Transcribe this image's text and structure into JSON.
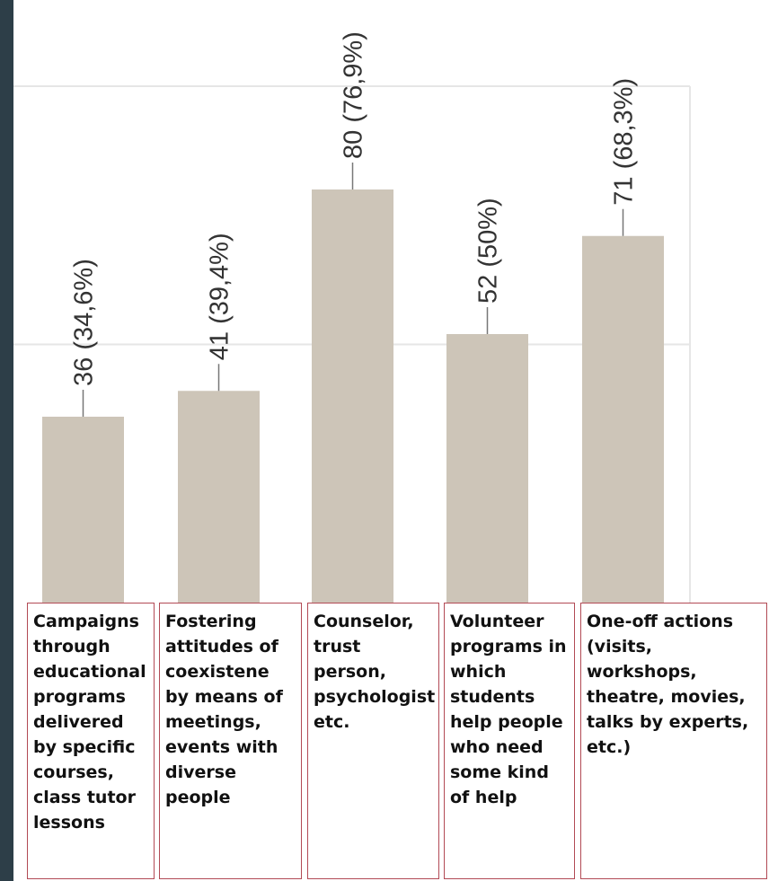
{
  "chart_data": {
    "type": "bar",
    "categories": [
      "Campaigns through educational programs delivered by specific courses, class tutor lessons",
      "Fostering attitudes of coexistene by means of meetings, events with diverse people",
      "Counselor, trust person, psychologist etc.",
      "Volunteer programs in which students help people who need some kind of help",
      "One-off actions (visits, workshops, theatre, movies, talks by experts, etc.)"
    ],
    "values": [
      36,
      41,
      80,
      52,
      71
    ],
    "data_labels": [
      "36 (34,6%)",
      "41 (39,4%)",
      "80 (76,9%)",
      "52 (50%)",
      "71 (68,3%)"
    ],
    "title": "",
    "xlabel": "",
    "ylabel": "",
    "ylim": [
      0,
      100
    ],
    "grid": true,
    "bar_color": "#cdc5b8",
    "gridline_color": "#e6e6e6",
    "label_line_color": "#777777",
    "category_box_border_color": "#b24a55",
    "side_stripe_color": "#2d3e48"
  }
}
